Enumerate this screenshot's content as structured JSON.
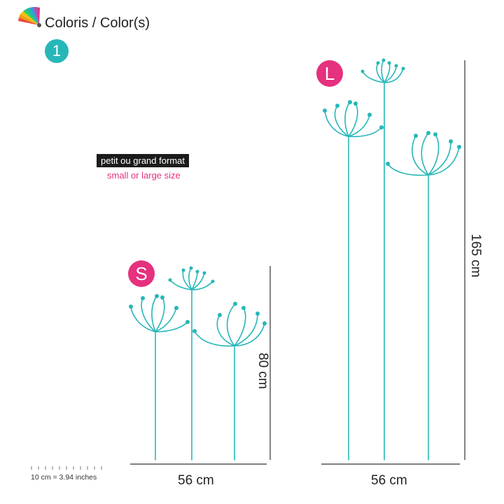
{
  "header": {
    "palette_icon": "color-fan-icon",
    "title": "Coloris / Color(s)",
    "color_count": "1"
  },
  "sizes": {
    "format_fr": "petit ou grand format",
    "format_en": "small or large size",
    "small": {
      "badge": "S",
      "width": "56 cm",
      "height": "80 cm"
    },
    "large": {
      "badge": "L",
      "width": "56 cm",
      "height": "165 cm"
    }
  },
  "scale": {
    "label": "10 cm = 3.94 inches"
  },
  "colors": {
    "teal": "#27b7b8",
    "pink": "#e5317e",
    "dark": "#1b1b1b"
  }
}
